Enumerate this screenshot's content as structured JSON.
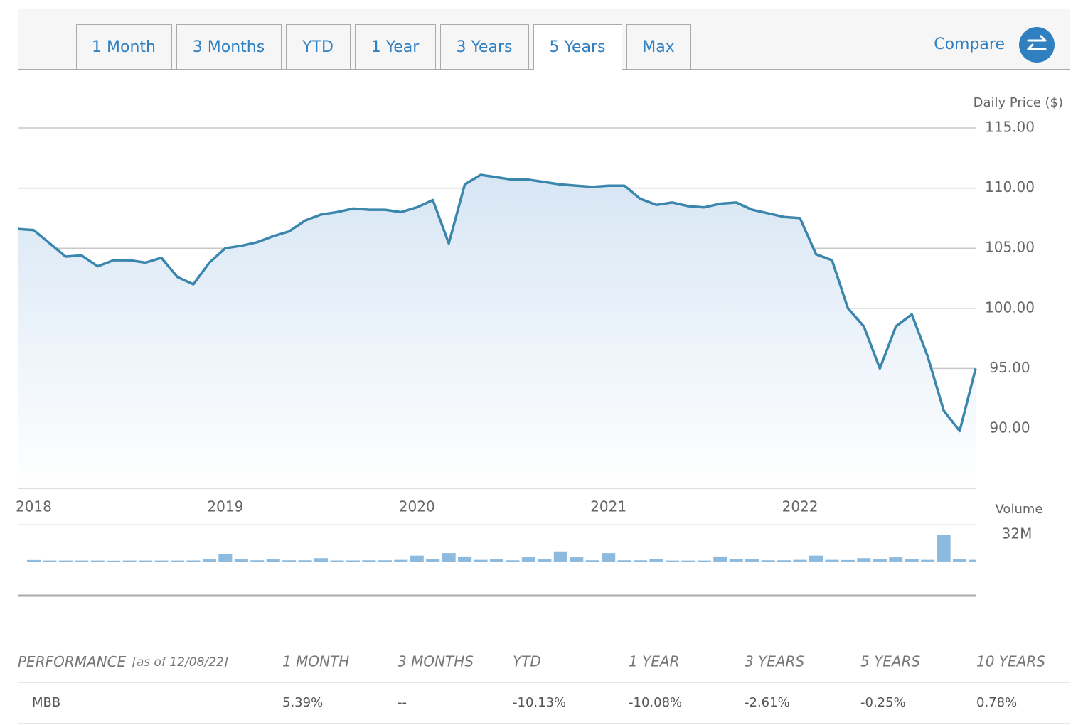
{
  "tabs": {
    "items": [
      "1 Month",
      "3 Months",
      "YTD",
      "1 Year",
      "3 Years",
      "5 Years",
      "Max"
    ],
    "active": 5
  },
  "compare": {
    "label": "Compare"
  },
  "chart_data": [
    {
      "type": "line",
      "y_axis_label": "Daily Price ($)",
      "color": "#3b86ad",
      "grid": true,
      "categories": [
        null,
        "2018",
        null,
        null,
        null,
        null,
        null,
        null,
        null,
        null,
        null,
        null,
        null,
        "2019",
        null,
        null,
        null,
        null,
        null,
        null,
        null,
        null,
        null,
        null,
        null,
        "2020",
        null,
        null,
        null,
        null,
        null,
        null,
        null,
        null,
        null,
        null,
        null,
        "2021",
        null,
        null,
        null,
        null,
        null,
        null,
        null,
        null,
        null,
        null,
        null,
        "2022",
        null,
        null,
        null,
        null,
        null,
        null,
        null,
        null,
        null,
        null,
        null
      ],
      "values": [
        106.6,
        106.5,
        105.4,
        104.3,
        104.4,
        103.5,
        104.0,
        104.0,
        103.8,
        104.2,
        102.6,
        102.0,
        103.8,
        105.0,
        105.2,
        105.5,
        106.0,
        106.4,
        107.3,
        107.8,
        108.0,
        108.3,
        108.2,
        108.2,
        108.0,
        108.4,
        109.0,
        105.4,
        110.3,
        111.1,
        110.9,
        110.7,
        110.7,
        110.5,
        110.3,
        110.2,
        110.1,
        110.2,
        110.2,
        109.1,
        108.6,
        108.8,
        108.5,
        108.4,
        108.7,
        108.8,
        108.2,
        107.9,
        107.6,
        107.5,
        104.5,
        104.0,
        100.0,
        98.5,
        95.0,
        98.5,
        99.5,
        96.0,
        91.5,
        89.8,
        95.0
      ],
      "ylim": [
        85,
        118
      ],
      "yticks": [
        {
          "value": 90,
          "label": "90.00"
        },
        {
          "value": 95,
          "label": "95.00"
        },
        {
          "value": 100,
          "label": "100.00"
        },
        {
          "value": 105,
          "label": "105.00"
        },
        {
          "value": 110,
          "label": "110.00"
        },
        {
          "value": 115,
          "label": "115.00"
        }
      ]
    },
    {
      "type": "bar",
      "y_axis_label": "Volume",
      "color": "#8dbadf",
      "values": [
        1200000,
        1800000,
        1200000,
        1200000,
        1200000,
        1200000,
        1000000,
        1200000,
        1200000,
        1200000,
        1200000,
        1300000,
        2500000,
        9000000,
        3000000,
        1500000,
        2500000,
        1500000,
        1500000,
        4000000,
        1300000,
        1300000,
        1500000,
        1500000,
        2000000,
        7000000,
        3000000,
        10000000,
        6000000,
        2000000,
        2500000,
        1500000,
        5000000,
        2500000,
        12000000,
        5000000,
        1500000,
        10000000,
        1500000,
        1500000,
        3000000,
        1200000,
        1200000,
        1200000,
        6000000,
        3000000,
        2500000,
        1500000,
        1500000,
        2000000,
        7000000,
        2000000,
        1800000,
        4000000,
        2500000,
        5000000,
        2500000,
        2000000,
        32000000,
        3000000,
        2000000
      ],
      "ylim": [
        0,
        32000000
      ],
      "yticks": [
        {
          "value": 32000000,
          "label": "32M"
        }
      ]
    }
  ],
  "performance": {
    "title": "PERFORMANCE",
    "as_of": "[as of 12/08/22]",
    "columns": [
      "1 MONTH",
      "3 MONTHS",
      "YTD",
      "1 YEAR",
      "3 YEARS",
      "5 YEARS",
      "10 YEARS"
    ],
    "rows": [
      [
        "MBB",
        "5.39%",
        "--",
        "-10.13%",
        "-10.08%",
        "-2.61%",
        "-0.25%",
        "0.78%"
      ]
    ]
  }
}
